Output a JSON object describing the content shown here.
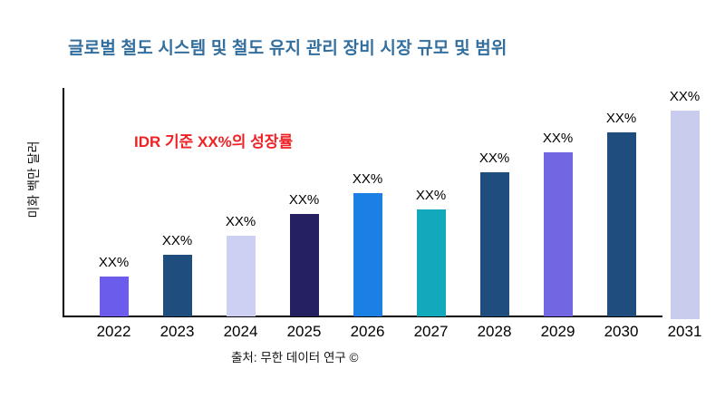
{
  "title": "글로벌 철도 시스템 및 철도 유지 관리 장비 시장 규모 및 범위",
  "annotation": "IDR 기준 XX%의 성장률",
  "y_axis_label": "미화 백만 달러",
  "source": "출처: 무한 데이터 연구 ©",
  "colors": {
    "title": "#336F9E",
    "annotation": "#EE2224",
    "axis": "#000000",
    "label_text": "#000000"
  },
  "chart_data": {
    "type": "bar",
    "title": "글로벌 철도 시스템 및 철도 유지 관리 장비 시장 규모 및 범위",
    "xlabel": "",
    "ylabel": "미화 백만 달러",
    "grid": false,
    "legend": "none",
    "categories": [
      "2022",
      "2023",
      "2024",
      "2025",
      "2026",
      "2027",
      "2028",
      "2029",
      "2030",
      "2031"
    ],
    "bar_labels": [
      "XX%",
      "XX%",
      "XX%",
      "XX%",
      "XX%",
      "XX%",
      "XX%",
      "XX%",
      "XX%",
      "XX%"
    ],
    "values_relative": [
      44,
      68,
      89,
      113,
      136,
      118,
      159,
      181,
      203,
      230
    ],
    "value_unit": "relative height (px), numeric values masked as XX% in source image",
    "bar_colors": [
      "#6B5CEC",
      "#1F4E7E",
      "#CDD0F2",
      "#252060",
      "#1A80E4",
      "#12A9BD",
      "#1F4E7E",
      "#7366E3",
      "#1F4E7E",
      "#CACCEE"
    ]
  }
}
